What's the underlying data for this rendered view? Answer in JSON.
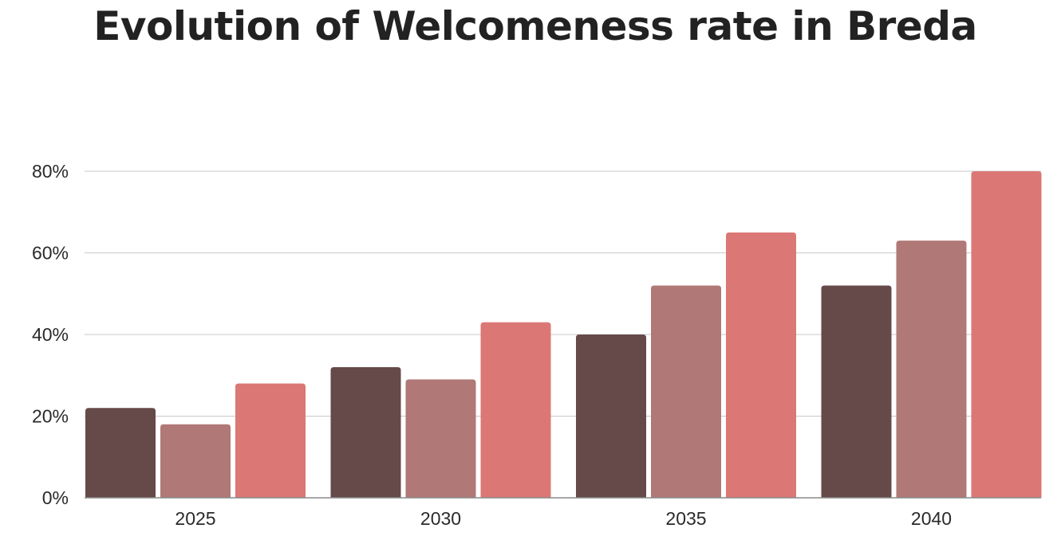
{
  "chart_data": {
    "type": "bar",
    "title": "Evolution of Welcomeness rate in Breda",
    "categories": [
      "2025",
      "2030",
      "2035",
      "2040"
    ],
    "series": [
      {
        "values": [
          22,
          32,
          40,
          52
        ],
        "color": "#664949"
      },
      {
        "values": [
          18,
          29,
          52,
          63
        ],
        "color": "#b07876"
      },
      {
        "values": [
          28,
          43,
          65,
          80
        ],
        "color": "#db7775"
      }
    ],
    "ylim": [
      0,
      80
    ],
    "yticks": [
      0,
      20,
      40,
      60,
      80
    ],
    "ytick_labels": [
      "0%",
      "20%",
      "40%",
      "60%",
      "80%"
    ],
    "xlabel": "",
    "ylabel": "",
    "grid": true,
    "legend": "none"
  }
}
